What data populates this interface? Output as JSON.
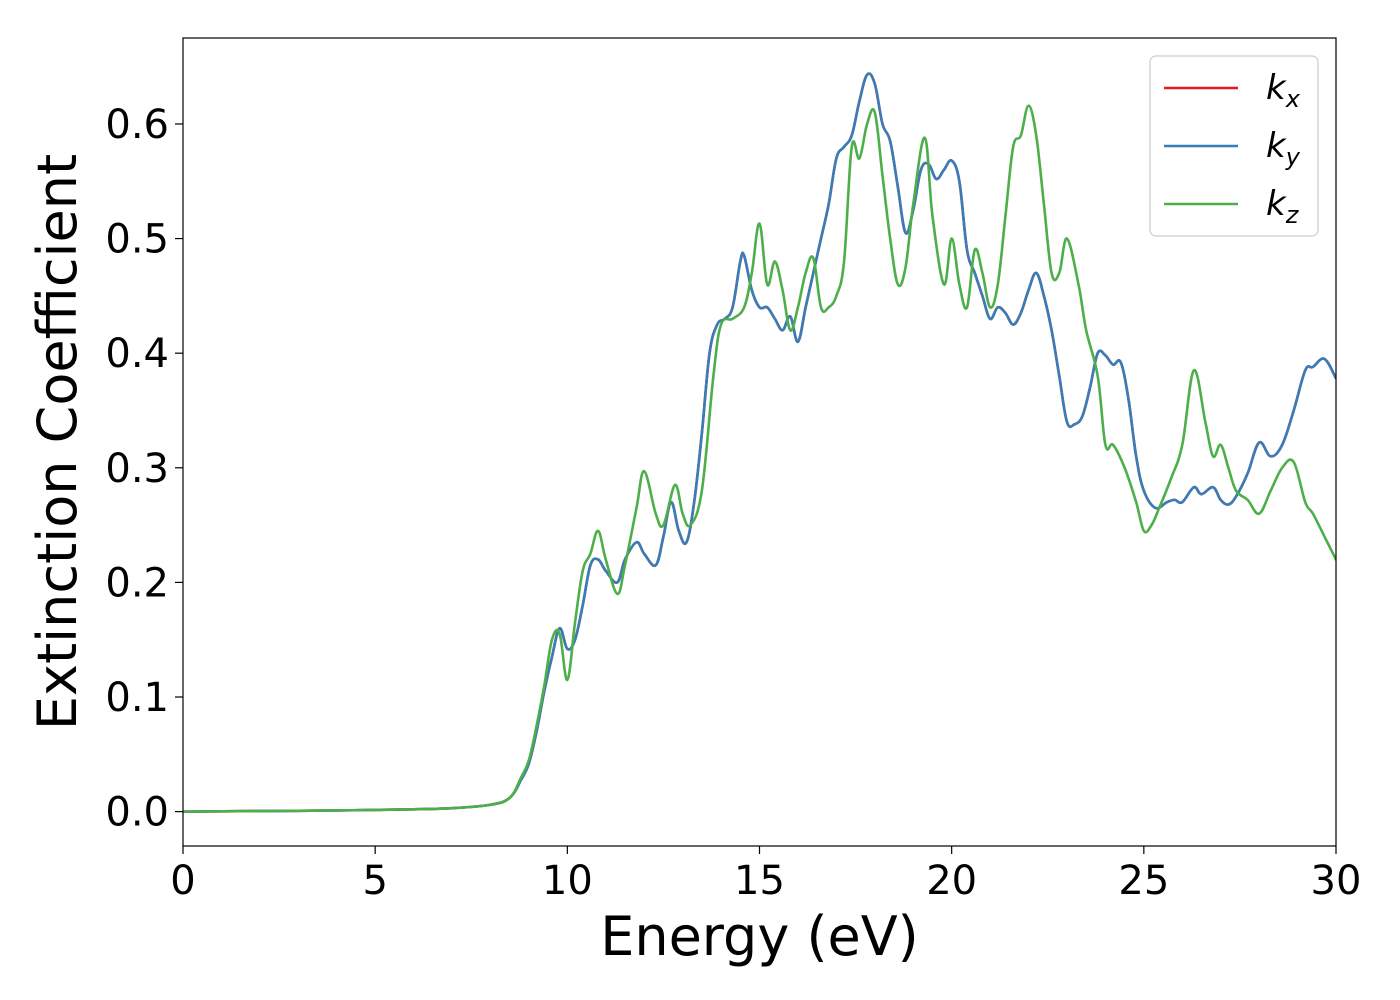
{
  "chart_data": {
    "type": "line",
    "xlabel": "Energy (eV)",
    "ylabel": "Extinction Coefficient",
    "xlim": [
      0,
      30
    ],
    "ylim": [
      -0.03,
      0.675
    ],
    "xticks": [
      0,
      5,
      10,
      15,
      20,
      25,
      30
    ],
    "xtick_labels": [
      "0",
      "5",
      "10",
      "15",
      "20",
      "25",
      "30"
    ],
    "yticks": [
      0.0,
      0.1,
      0.2,
      0.3,
      0.4,
      0.5,
      0.6
    ],
    "ytick_labels": [
      "0.0",
      "0.1",
      "0.2",
      "0.3",
      "0.4",
      "0.5",
      "0.6"
    ],
    "grid": false,
    "legend": {
      "position": "top-right",
      "entries": [
        {
          "base": "k",
          "sub": "x",
          "color": "#e41a1c"
        },
        {
          "base": "k",
          "sub": "y",
          "color": "#377eb8"
        },
        {
          "base": "k",
          "sub": "z",
          "color": "#4daf4a"
        }
      ]
    },
    "series": [
      {
        "name": "kx",
        "color": "#e41a1c",
        "x": [
          0,
          2,
          4,
          6,
          7,
          8,
          8.5,
          8.8,
          9.0,
          9.2,
          9.4,
          9.6,
          9.8,
          10.0,
          10.2,
          10.4,
          10.6,
          10.8,
          11.0,
          11.3,
          11.5,
          11.8,
          12.0,
          12.3,
          12.5,
          12.7,
          12.9,
          13.1,
          13.3,
          13.5,
          13.7,
          13.9,
          14.1,
          14.3,
          14.5,
          14.6,
          14.8,
          15.0,
          15.2,
          15.4,
          15.6,
          15.8,
          16.0,
          16.2,
          16.4,
          16.6,
          16.8,
          17.0,
          17.2,
          17.4,
          17.6,
          17.8,
          18.0,
          18.2,
          18.4,
          18.6,
          18.8,
          19.0,
          19.2,
          19.4,
          19.6,
          19.8,
          20.0,
          20.2,
          20.4,
          20.6,
          20.8,
          21.0,
          21.2,
          21.4,
          21.6,
          21.8,
          22.0,
          22.2,
          22.4,
          22.6,
          22.8,
          23.0,
          23.2,
          23.4,
          23.6,
          23.8,
          24.0,
          24.2,
          24.4,
          24.6,
          24.8,
          25.0,
          25.3,
          25.6,
          25.8,
          26.0,
          26.3,
          26.5,
          26.8,
          27.0,
          27.2,
          27.4,
          27.7,
          28.0,
          28.3,
          28.6,
          28.9,
          29.2,
          29.4,
          29.7,
          30.0
        ],
        "values": [
          0.0,
          0.0005,
          0.001,
          0.002,
          0.003,
          0.006,
          0.012,
          0.028,
          0.042,
          0.07,
          0.105,
          0.135,
          0.16,
          0.142,
          0.15,
          0.18,
          0.215,
          0.22,
          0.21,
          0.2,
          0.22,
          0.235,
          0.225,
          0.215,
          0.24,
          0.27,
          0.245,
          0.235,
          0.27,
          0.33,
          0.4,
          0.425,
          0.43,
          0.44,
          0.48,
          0.485,
          0.455,
          0.44,
          0.44,
          0.43,
          0.42,
          0.432,
          0.41,
          0.44,
          0.47,
          0.5,
          0.53,
          0.57,
          0.58,
          0.59,
          0.62,
          0.643,
          0.635,
          0.6,
          0.585,
          0.545,
          0.505,
          0.525,
          0.56,
          0.565,
          0.552,
          0.56,
          0.568,
          0.55,
          0.49,
          0.47,
          0.45,
          0.43,
          0.44,
          0.435,
          0.425,
          0.435,
          0.455,
          0.47,
          0.45,
          0.42,
          0.38,
          0.34,
          0.338,
          0.345,
          0.37,
          0.4,
          0.398,
          0.39,
          0.392,
          0.36,
          0.31,
          0.28,
          0.265,
          0.27,
          0.272,
          0.27,
          0.283,
          0.277,
          0.283,
          0.272,
          0.268,
          0.275,
          0.295,
          0.322,
          0.31,
          0.32,
          0.35,
          0.385,
          0.388,
          0.395,
          0.378
        ]
      },
      {
        "name": "ky",
        "color": "#377eb8",
        "x": [
          0,
          2,
          4,
          6,
          7,
          8,
          8.5,
          8.8,
          9.0,
          9.2,
          9.4,
          9.6,
          9.8,
          10.0,
          10.2,
          10.4,
          10.6,
          10.8,
          11.0,
          11.3,
          11.5,
          11.8,
          12.0,
          12.3,
          12.5,
          12.7,
          12.9,
          13.1,
          13.3,
          13.5,
          13.7,
          13.9,
          14.1,
          14.3,
          14.5,
          14.6,
          14.8,
          15.0,
          15.2,
          15.4,
          15.6,
          15.8,
          16.0,
          16.2,
          16.4,
          16.6,
          16.8,
          17.0,
          17.2,
          17.4,
          17.6,
          17.8,
          18.0,
          18.2,
          18.4,
          18.6,
          18.8,
          19.0,
          19.2,
          19.4,
          19.6,
          19.8,
          20.0,
          20.2,
          20.4,
          20.6,
          20.8,
          21.0,
          21.2,
          21.4,
          21.6,
          21.8,
          22.0,
          22.2,
          22.4,
          22.6,
          22.8,
          23.0,
          23.2,
          23.4,
          23.6,
          23.8,
          24.0,
          24.2,
          24.4,
          24.6,
          24.8,
          25.0,
          25.3,
          25.6,
          25.8,
          26.0,
          26.3,
          26.5,
          26.8,
          27.0,
          27.2,
          27.4,
          27.7,
          28.0,
          28.3,
          28.6,
          28.9,
          29.2,
          29.4,
          29.7,
          30.0
        ],
        "values": [
          0.0,
          0.0005,
          0.001,
          0.002,
          0.003,
          0.006,
          0.012,
          0.028,
          0.042,
          0.07,
          0.105,
          0.135,
          0.16,
          0.142,
          0.15,
          0.18,
          0.215,
          0.22,
          0.21,
          0.2,
          0.22,
          0.235,
          0.225,
          0.215,
          0.24,
          0.27,
          0.245,
          0.235,
          0.27,
          0.33,
          0.4,
          0.425,
          0.43,
          0.44,
          0.48,
          0.485,
          0.455,
          0.44,
          0.44,
          0.43,
          0.42,
          0.432,
          0.41,
          0.44,
          0.47,
          0.5,
          0.53,
          0.57,
          0.58,
          0.59,
          0.62,
          0.643,
          0.635,
          0.6,
          0.585,
          0.545,
          0.505,
          0.525,
          0.56,
          0.565,
          0.552,
          0.56,
          0.568,
          0.55,
          0.49,
          0.47,
          0.45,
          0.43,
          0.44,
          0.435,
          0.425,
          0.435,
          0.455,
          0.47,
          0.45,
          0.42,
          0.38,
          0.34,
          0.338,
          0.345,
          0.37,
          0.4,
          0.398,
          0.39,
          0.392,
          0.36,
          0.31,
          0.28,
          0.265,
          0.27,
          0.272,
          0.27,
          0.283,
          0.277,
          0.283,
          0.272,
          0.268,
          0.275,
          0.295,
          0.322,
          0.31,
          0.32,
          0.35,
          0.385,
          0.388,
          0.395,
          0.378
        ]
      },
      {
        "name": "kz",
        "color": "#4daf4a",
        "x": [
          0,
          2,
          4,
          6,
          7,
          8,
          8.5,
          8.8,
          9.0,
          9.2,
          9.4,
          9.6,
          9.8,
          10.0,
          10.2,
          10.4,
          10.6,
          10.8,
          11.0,
          11.3,
          11.5,
          11.8,
          12.0,
          12.3,
          12.5,
          12.8,
          13.0,
          13.2,
          13.5,
          13.8,
          14.0,
          14.3,
          14.6,
          14.8,
          15.0,
          15.2,
          15.4,
          15.6,
          15.8,
          16.0,
          16.2,
          16.4,
          16.6,
          16.8,
          17.0,
          17.2,
          17.4,
          17.6,
          17.8,
          18.0,
          18.2,
          18.4,
          18.6,
          18.8,
          19.0,
          19.3,
          19.5,
          19.8,
          20.0,
          20.2,
          20.4,
          20.6,
          20.8,
          21.0,
          21.2,
          21.4,
          21.6,
          21.8,
          22.0,
          22.2,
          22.4,
          22.6,
          22.8,
          23.0,
          23.3,
          23.5,
          23.8,
          24.0,
          24.2,
          24.5,
          24.8,
          25.0,
          25.2,
          25.4,
          25.7,
          26.0,
          26.3,
          26.6,
          26.8,
          27.0,
          27.2,
          27.4,
          27.7,
          28.0,
          28.3,
          28.6,
          28.9,
          29.2,
          29.4,
          29.7,
          30.0
        ],
        "values": [
          0.0,
          0.0005,
          0.001,
          0.002,
          0.003,
          0.006,
          0.012,
          0.03,
          0.045,
          0.075,
          0.11,
          0.15,
          0.155,
          0.115,
          0.165,
          0.21,
          0.225,
          0.245,
          0.22,
          0.19,
          0.215,
          0.265,
          0.297,
          0.26,
          0.25,
          0.285,
          0.26,
          0.25,
          0.28,
          0.38,
          0.425,
          0.43,
          0.44,
          0.47,
          0.513,
          0.46,
          0.48,
          0.455,
          0.42,
          0.44,
          0.47,
          0.483,
          0.44,
          0.44,
          0.45,
          0.48,
          0.58,
          0.57,
          0.6,
          0.61,
          0.555,
          0.5,
          0.46,
          0.475,
          0.53,
          0.588,
          0.52,
          0.46,
          0.5,
          0.46,
          0.44,
          0.49,
          0.47,
          0.44,
          0.46,
          0.52,
          0.58,
          0.59,
          0.616,
          0.59,
          0.53,
          0.47,
          0.47,
          0.5,
          0.46,
          0.42,
          0.38,
          0.32,
          0.32,
          0.3,
          0.27,
          0.245,
          0.25,
          0.265,
          0.29,
          0.32,
          0.385,
          0.34,
          0.31,
          0.32,
          0.3,
          0.28,
          0.272,
          0.26,
          0.28,
          0.3,
          0.305,
          0.27,
          0.26,
          0.24,
          0.22
        ]
      }
    ]
  }
}
